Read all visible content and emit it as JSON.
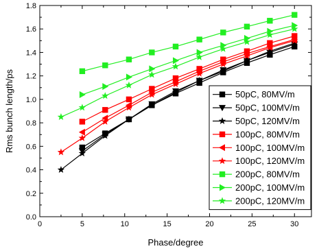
{
  "chart_data": {
    "type": "line",
    "title": "",
    "xlabel": "Phase/degree",
    "ylabel": "Rms bunch length/ps",
    "xlim": [
      0,
      32
    ],
    "ylim": [
      0.0,
      1.8
    ],
    "xticks": [
      0,
      5,
      10,
      15,
      20,
      25,
      30
    ],
    "yticks": [
      0.0,
      0.2,
      0.4,
      0.6,
      0.8,
      1.0,
      1.2,
      1.4,
      1.6,
      1.8
    ],
    "grid": false,
    "legend_position": "right",
    "series": [
      {
        "name": "50pC, 80MV/m",
        "color": "#000000",
        "marker": "square",
        "x": [
          5,
          7.7,
          10.5,
          13.2,
          16,
          18.8,
          21.6,
          24.4,
          27.1,
          30
        ],
        "y": [
          0.59,
          0.71,
          0.83,
          0.95,
          1.05,
          1.14,
          1.23,
          1.31,
          1.38,
          1.45
        ]
      },
      {
        "name": "50pC, 100MV/m",
        "color": "#000000",
        "marker": "triangle-down",
        "x": [
          5,
          7.7,
          10.5,
          13.2,
          16,
          18.8,
          21.6,
          24.4,
          27.1,
          30
        ],
        "y": [
          0.56,
          0.7,
          0.83,
          0.96,
          1.07,
          1.16,
          1.25,
          1.33,
          1.4,
          1.47
        ]
      },
      {
        "name": "50pC, 120MV/m",
        "color": "#000000",
        "marker": "star",
        "x": [
          2.5,
          5,
          7.7,
          10.5,
          13.2,
          16,
          18.8,
          21.6,
          24.4,
          27.1,
          30
        ],
        "y": [
          0.4,
          0.54,
          0.69,
          0.83,
          0.95,
          1.06,
          1.16,
          1.24,
          1.33,
          1.41,
          1.48
        ]
      },
      {
        "name": "100pC, 80MV/m",
        "color": "#ff0000",
        "marker": "square",
        "x": [
          5,
          7.7,
          10.5,
          13.2,
          16,
          18.8,
          21.6,
          24.4,
          27.1,
          30
        ],
        "y": [
          0.81,
          0.91,
          1.0,
          1.09,
          1.18,
          1.26,
          1.34,
          1.41,
          1.48,
          1.54
        ]
      },
      {
        "name": "100pC, 100MV/m",
        "color": "#ff0000",
        "marker": "triangle-left",
        "x": [
          5,
          7.7,
          10.5,
          13.2,
          16,
          18.8,
          21.6,
          24.4,
          27.1,
          30
        ],
        "y": [
          0.72,
          0.84,
          0.95,
          1.06,
          1.15,
          1.24,
          1.32,
          1.39,
          1.45,
          1.51
        ]
      },
      {
        "name": "100pC, 120MV/m",
        "color": "#ff0000",
        "marker": "star",
        "x": [
          2.5,
          5,
          7.7,
          10.5,
          13.2,
          16,
          18.8,
          21.6,
          24.4,
          27.1,
          30
        ],
        "y": [
          0.55,
          0.67,
          0.81,
          0.93,
          1.04,
          1.13,
          1.22,
          1.3,
          1.37,
          1.44,
          1.5
        ]
      },
      {
        "name": "200pC, 80MV/m",
        "color": "#22ee22",
        "marker": "square",
        "x": [
          5,
          7.7,
          10.5,
          13.2,
          16,
          18.8,
          21.6,
          24.4,
          27.1,
          30
        ],
        "y": [
          1.24,
          1.29,
          1.34,
          1.4,
          1.45,
          1.51,
          1.57,
          1.62,
          1.67,
          1.72
        ]
      },
      {
        "name": "200pC, 100MV/m",
        "color": "#22ee22",
        "marker": "triangle-right",
        "x": [
          5,
          7.7,
          10.5,
          13.2,
          16,
          18.8,
          21.6,
          24.4,
          27.1,
          30
        ],
        "y": [
          1.04,
          1.11,
          1.19,
          1.26,
          1.33,
          1.4,
          1.46,
          1.52,
          1.58,
          1.63
        ]
      },
      {
        "name": "200pC, 120MV/m",
        "color": "#22ee22",
        "marker": "star",
        "x": [
          2.5,
          5,
          7.7,
          10.5,
          13.2,
          16,
          18.8,
          21.6,
          24.4,
          27.1,
          30
        ],
        "y": [
          0.85,
          0.93,
          1.03,
          1.12,
          1.21,
          1.28,
          1.36,
          1.43,
          1.49,
          1.55,
          1.6
        ]
      }
    ]
  }
}
